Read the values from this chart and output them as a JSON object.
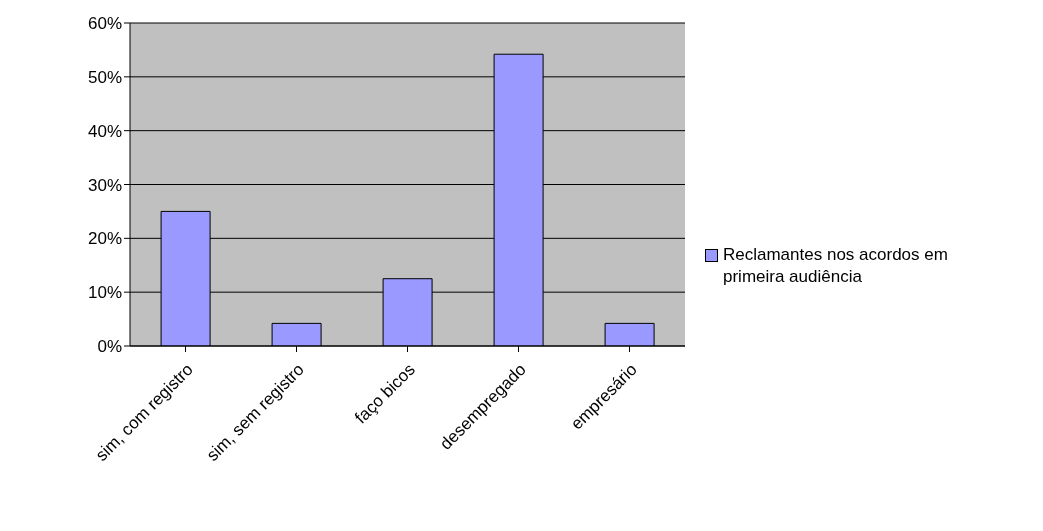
{
  "chart_data": {
    "type": "bar",
    "categories": [
      "sim, com registro",
      "sim, sem registro",
      "faço bicos",
      "desempregado",
      "empresário"
    ],
    "series": [
      {
        "name": "Reclamantes nos acordos em primeira audiência",
        "color": "#9999ff",
        "values": [
          25,
          4.2,
          12.5,
          54.2,
          4.2
        ]
      }
    ],
    "ylim": [
      0,
      60
    ],
    "yticks": [
      {
        "value": 0,
        "label": "0%"
      },
      {
        "value": 10,
        "label": "10%"
      },
      {
        "value": 20,
        "label": "20%"
      },
      {
        "value": 30,
        "label": "30%"
      },
      {
        "value": 40,
        "label": "40%"
      },
      {
        "value": 50,
        "label": "50%"
      },
      {
        "value": 60,
        "label": "60%"
      }
    ],
    "grid": "y",
    "legend": "right"
  }
}
